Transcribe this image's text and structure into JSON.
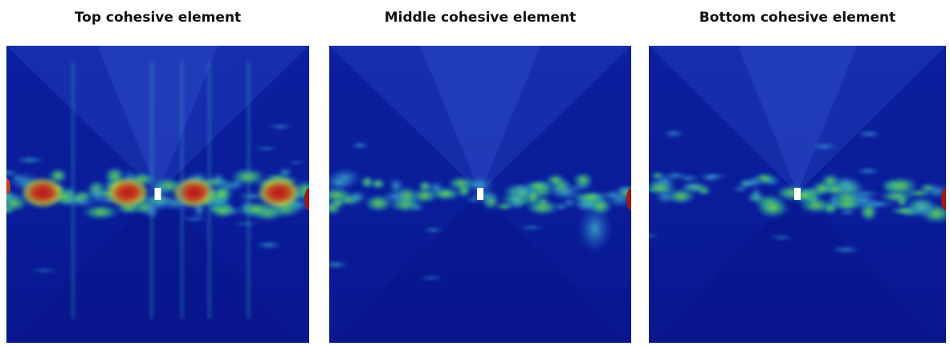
{
  "panels": [
    {
      "title": "Top cohesive element"
    },
    {
      "title": "Middle cohesive element"
    },
    {
      "title": "Bottom cohesive element"
    }
  ]
}
